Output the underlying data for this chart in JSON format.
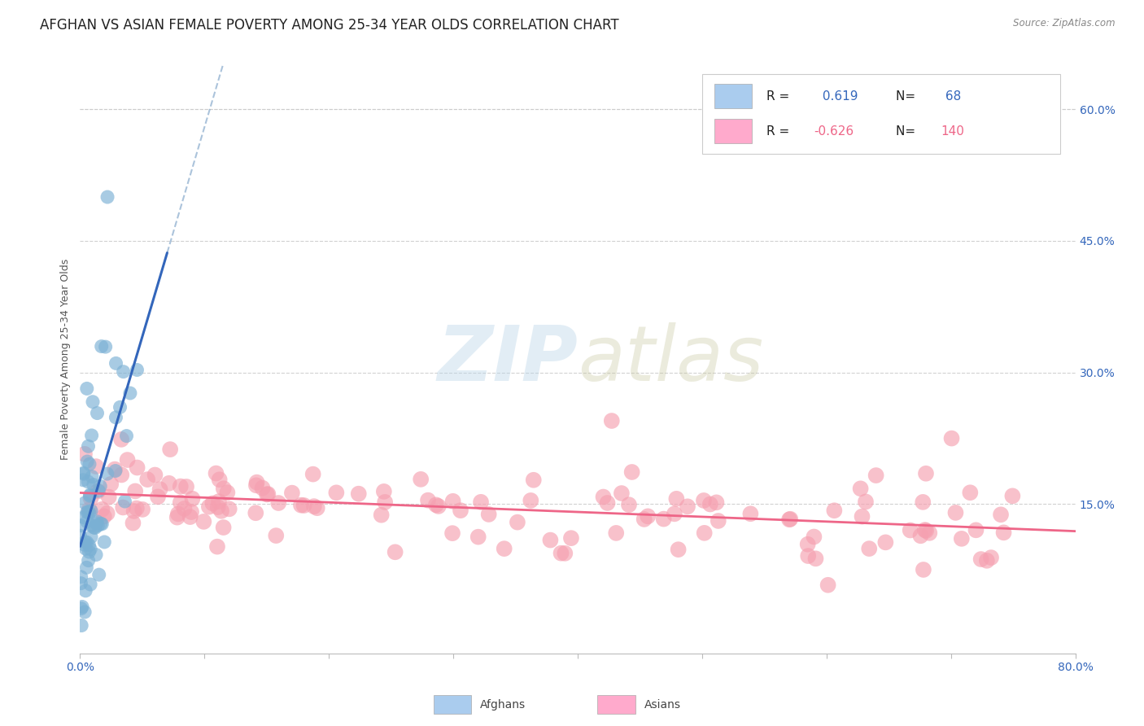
{
  "title": "AFGHAN VS ASIAN FEMALE POVERTY AMONG 25-34 YEAR OLDS CORRELATION CHART",
  "source": "Source: ZipAtlas.com",
  "ylabel": "Female Poverty Among 25-34 Year Olds",
  "xlim": [
    0.0,
    0.8
  ],
  "ylim": [
    -0.02,
    0.65
  ],
  "x_ticks": [
    0.0,
    0.1,
    0.2,
    0.3,
    0.4,
    0.5,
    0.6,
    0.7,
    0.8
  ],
  "y_ticks_right": [
    0.15,
    0.3,
    0.45,
    0.6
  ],
  "y_tick_labels_right": [
    "15.0%",
    "30.0%",
    "45.0%",
    "60.0%"
  ],
  "afghan_R": 0.619,
  "afghan_N": 68,
  "asian_R": -0.626,
  "asian_N": 140,
  "afghan_color": "#7ab0d4",
  "asian_color": "#f5a0b0",
  "afghan_line_color": "#3366bb",
  "asian_line_color": "#ee6688",
  "watermark_zip": "ZIP",
  "watermark_atlas": "atlas",
  "legend_box_color_afghan": "#aaccee",
  "legend_box_color_asian": "#ffaacc",
  "title_fontsize": 12,
  "label_fontsize": 9,
  "tick_fontsize": 10,
  "legend_fontsize": 11,
  "grid_color": "#cccccc",
  "background_color": "#ffffff"
}
